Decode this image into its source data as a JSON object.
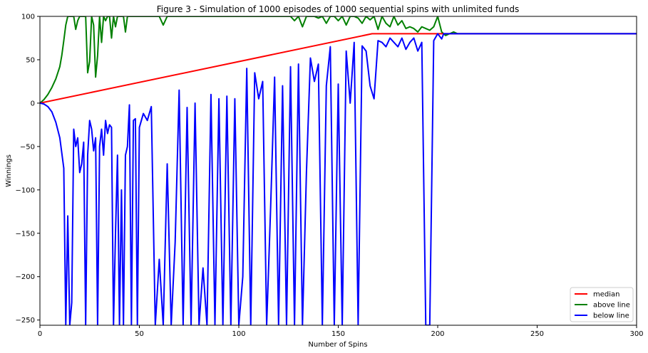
{
  "chart_data": {
    "type": "line",
    "title": "Figure 3 - Simulation of 1000 episodes of 1000 sequential spins with unlimited funds",
    "xlabel": "Number of Spins",
    "ylabel": "Winnings",
    "xlim": [
      0,
      300
    ],
    "ylim": [
      -256,
      100
    ],
    "xticks": [
      0,
      50,
      100,
      150,
      200,
      250,
      300
    ],
    "yticks": [
      -250,
      -200,
      -150,
      -100,
      -50,
      0,
      50,
      100
    ],
    "grid": false,
    "legend_position": "bottom-right",
    "series": [
      {
        "name": "median",
        "color": "#ff0000",
        "x": [
          0,
          167,
          212,
          300
        ],
        "y": [
          0,
          80,
          80,
          80
        ]
      },
      {
        "name": "above line",
        "color": "#008000",
        "x": [
          0,
          2,
          4,
          6,
          8,
          10,
          11,
          12,
          13,
          14,
          15,
          16,
          17,
          18,
          19,
          20,
          21,
          22,
          23,
          24,
          25,
          26,
          27,
          28,
          29,
          30,
          31,
          32,
          33,
          34,
          35,
          36,
          37,
          38,
          39,
          40,
          41,
          42,
          43,
          44,
          45,
          46,
          47,
          48,
          49,
          50,
          51,
          52,
          53,
          54,
          55,
          56,
          57,
          58,
          59,
          60,
          62,
          64,
          66,
          68,
          70,
          72,
          74,
          76,
          78,
          80,
          82,
          84,
          86,
          88,
          90,
          92,
          94,
          96,
          98,
          100,
          102,
          104,
          106,
          108,
          110,
          112,
          114,
          116,
          118,
          120,
          122,
          124,
          126,
          128,
          130,
          132,
          134,
          136,
          138,
          140,
          142,
          144,
          146,
          148,
          150,
          152,
          154,
          156,
          158,
          160,
          162,
          164,
          166,
          168,
          170,
          172,
          174,
          176,
          178,
          180,
          182,
          184,
          186,
          188,
          190,
          192,
          194,
          196,
          198,
          200,
          202,
          204,
          206,
          208,
          210,
          212,
          300
        ],
        "y": [
          0,
          4,
          10,
          18,
          28,
          42,
          55,
          72,
          90,
          100,
          100,
          100,
          100,
          85,
          95,
          100,
          100,
          100,
          100,
          35,
          48,
          100,
          90,
          30,
          55,
          100,
          70,
          100,
          95,
          100,
          100,
          75,
          100,
          88,
          100,
          100,
          100,
          100,
          82,
          100,
          100,
          100,
          100,
          100,
          100,
          100,
          100,
          100,
          100,
          100,
          100,
          100,
          100,
          100,
          100,
          100,
          90,
          100,
          100,
          100,
          100,
          100,
          100,
          100,
          100,
          100,
          100,
          100,
          100,
          100,
          100,
          100,
          100,
          100,
          100,
          100,
          100,
          100,
          100,
          100,
          100,
          100,
          100,
          100,
          100,
          100,
          100,
          100,
          100,
          95,
          100,
          88,
          100,
          100,
          100,
          98,
          100,
          92,
          100,
          100,
          95,
          100,
          90,
          100,
          100,
          98,
          92,
          100,
          96,
          100,
          85,
          100,
          92,
          88,
          100,
          90,
          95,
          86,
          88,
          86,
          82,
          88,
          86,
          84,
          88,
          100,
          82,
          78,
          80,
          82,
          80,
          80,
          80
        ]
      },
      {
        "name": "below line",
        "color": "#0000ff",
        "x": [
          0,
          2,
          4,
          6,
          8,
          10,
          12,
          13,
          14,
          15,
          16,
          17,
          18,
          19,
          20,
          21,
          22,
          23,
          24,
          25,
          26,
          27,
          28,
          29,
          30,
          31,
          32,
          33,
          34,
          35,
          36,
          37,
          38,
          39,
          40,
          41,
          42,
          43,
          44,
          45,
          46,
          47,
          48,
          49,
          50,
          52,
          54,
          56,
          58,
          60,
          62,
          64,
          66,
          68,
          70,
          72,
          74,
          76,
          78,
          80,
          82,
          84,
          86,
          88,
          90,
          92,
          94,
          96,
          98,
          100,
          102,
          104,
          106,
          108,
          110,
          112,
          114,
          116,
          118,
          120,
          122,
          124,
          126,
          128,
          130,
          132,
          134,
          136,
          138,
          140,
          142,
          144,
          146,
          148,
          150,
          152,
          154,
          156,
          158,
          160,
          162,
          164,
          166,
          168,
          170,
          172,
          174,
          176,
          178,
          180,
          182,
          184,
          186,
          188,
          190,
          192,
          194,
          196,
          198,
          200,
          202,
          203,
          204,
          206,
          208,
          210,
          212,
          300
        ],
        "y": [
          0,
          -1,
          -4,
          -10,
          -22,
          -40,
          -75,
          -256,
          -130,
          -256,
          -230,
          -30,
          -50,
          -40,
          -80,
          -70,
          -45,
          -256,
          -60,
          -20,
          -30,
          -55,
          -40,
          -256,
          -50,
          -30,
          -60,
          -20,
          -35,
          -25,
          -28,
          -256,
          -150,
          -60,
          -256,
          -100,
          -256,
          -60,
          -50,
          -2,
          -256,
          -20,
          -18,
          -256,
          -28,
          -12,
          -20,
          -4,
          -256,
          -180,
          -256,
          -70,
          -256,
          -160,
          15,
          -256,
          -5,
          -256,
          0,
          -256,
          -190,
          -256,
          10,
          -256,
          5,
          -256,
          8,
          -256,
          5,
          -256,
          -200,
          40,
          -256,
          35,
          5,
          25,
          -256,
          -120,
          30,
          -256,
          20,
          -256,
          42,
          -256,
          45,
          -256,
          -80,
          52,
          25,
          45,
          -256,
          20,
          65,
          -256,
          22,
          -256,
          60,
          0,
          70,
          -256,
          66,
          60,
          20,
          5,
          72,
          70,
          65,
          75,
          70,
          65,
          75,
          62,
          70,
          75,
          60,
          70,
          -256,
          -256,
          72,
          80,
          74,
          80,
          80,
          80,
          80,
          80,
          80,
          80
        ]
      }
    ]
  }
}
